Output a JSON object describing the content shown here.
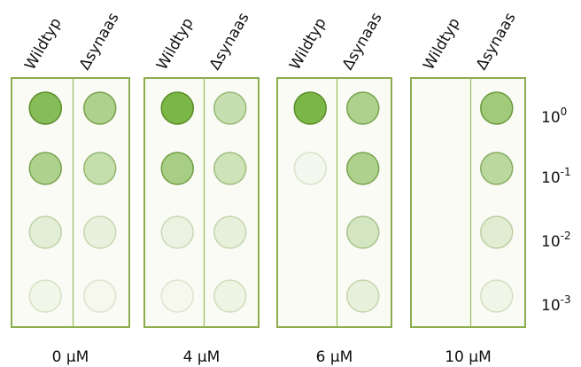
{
  "panels": [
    {
      "columns": [
        "Wildtyp",
        "Δsynaas"
      ],
      "label": "0 µM"
    },
    {
      "columns": [
        "Wildtyp",
        "Δsynaas"
      ],
      "label": "4 µM"
    },
    {
      "columns": [
        "Wildtyp",
        "Δsynaas"
      ],
      "label": "6 µM"
    },
    {
      "columns": [
        "Wildtyp",
        "Δsynaas"
      ],
      "label": "10 µM"
    }
  ],
  "dilutions": [
    {
      "base": "10",
      "exponent": "0"
    },
    {
      "base": "10",
      "exponent": "-1"
    },
    {
      "base": "10",
      "exponent": "-2"
    },
    {
      "base": "10",
      "exponent": "-3"
    }
  ]
}
